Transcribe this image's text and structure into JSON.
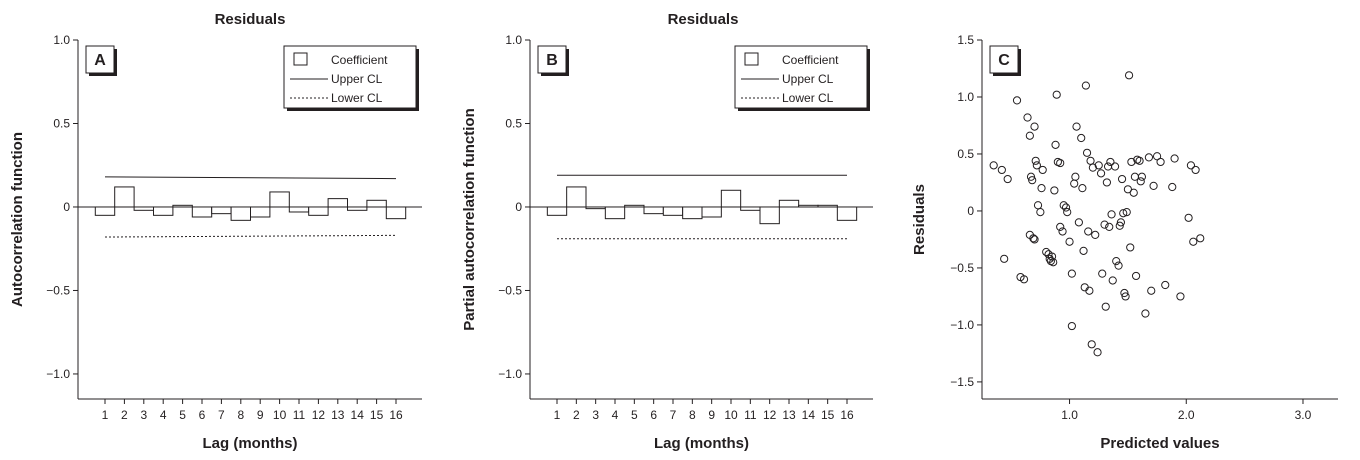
{
  "chart_data": [
    {
      "panel": "A",
      "type": "bar",
      "title": "Residuals",
      "xlabel": "Lag (months)",
      "ylabel": "Autocorrelation function",
      "categories": [
        "1",
        "2",
        "3",
        "4",
        "5",
        "6",
        "7",
        "8",
        "9",
        "10",
        "11",
        "12",
        "13",
        "14",
        "15",
        "16"
      ],
      "values": [
        -0.05,
        0.12,
        -0.02,
        -0.05,
        0.01,
        -0.06,
        -0.04,
        -0.08,
        -0.06,
        0.09,
        -0.03,
        -0.05,
        0.05,
        -0.02,
        0.04,
        -0.07
      ],
      "upper_cl": [
        0.18,
        0.17
      ],
      "lower_cl": [
        -0.18,
        -0.17
      ],
      "ylim": [
        -1.15,
        1.0
      ],
      "yticks": [
        {
          "value": 1.0,
          "label": "1.0"
        },
        {
          "value": 0.5,
          "label": "0.5"
        },
        {
          "value": 0,
          "label": "0"
        },
        {
          "value": -0.5,
          "label": "−0.5"
        },
        {
          "value": -1.0,
          "label": "−1.0"
        }
      ],
      "legend": {
        "position": "top-right",
        "items": [
          {
            "kind": "box",
            "label": "Coefficient"
          },
          {
            "kind": "solid",
            "label": "Upper CL"
          },
          {
            "kind": "dotted",
            "label": "Lower CL"
          }
        ]
      },
      "grid": false
    },
    {
      "panel": "B",
      "type": "bar",
      "title": "Residuals",
      "xlabel": "Lag (months)",
      "ylabel": "Partial autocorrelation function",
      "categories": [
        "1",
        "2",
        "3",
        "4",
        "5",
        "6",
        "7",
        "8",
        "9",
        "10",
        "11",
        "12",
        "13",
        "14",
        "15",
        "16"
      ],
      "values": [
        -0.05,
        0.12,
        -0.01,
        -0.07,
        0.01,
        -0.04,
        -0.05,
        -0.07,
        -0.06,
        0.1,
        -0.02,
        -0.1,
        0.04,
        0.01,
        0.01,
        -0.08
      ],
      "upper_cl": [
        0.19,
        0.19
      ],
      "lower_cl": [
        -0.19,
        -0.19
      ],
      "ylim": [
        -1.15,
        1.0
      ],
      "yticks": [
        {
          "value": 1.0,
          "label": "1.0"
        },
        {
          "value": 0.5,
          "label": "0.5"
        },
        {
          "value": 0,
          "label": "0"
        },
        {
          "value": -0.5,
          "label": "−0.5"
        },
        {
          "value": -1.0,
          "label": "−1.0"
        }
      ],
      "legend": {
        "position": "top-right",
        "items": [
          {
            "kind": "box",
            "label": "Coefficient"
          },
          {
            "kind": "solid",
            "label": "Upper CL"
          },
          {
            "kind": "dotted",
            "label": "Lower CL"
          }
        ]
      },
      "grid": false
    },
    {
      "panel": "C",
      "type": "scatter",
      "title": "",
      "xlabel": "Predicted values",
      "ylabel": "Residuals",
      "xlim": [
        0.25,
        3.3
      ],
      "ylim": [
        -1.65,
        1.5
      ],
      "xticks": [
        {
          "value": 1.0,
          "label": "1.0"
        },
        {
          "value": 2.0,
          "label": "2.0"
        },
        {
          "value": 3.0,
          "label": "3.0"
        }
      ],
      "yticks": [
        {
          "value": 1.5,
          "label": "1.5"
        },
        {
          "value": 1.0,
          "label": "1.0"
        },
        {
          "value": 0.5,
          "label": "0.5"
        },
        {
          "value": 0,
          "label": "0"
        },
        {
          "value": -0.5,
          "label": "−0.5"
        },
        {
          "value": -1.0,
          "label": "−1.0"
        },
        {
          "value": -1.5,
          "label": "−1.5"
        }
      ],
      "points": [
        [
          0.35,
          0.4
        ],
        [
          0.42,
          0.36
        ],
        [
          0.47,
          0.28
        ],
        [
          0.44,
          -0.42
        ],
        [
          0.55,
          0.97
        ],
        [
          0.58,
          -0.58
        ],
        [
          0.61,
          -0.6
        ],
        [
          0.64,
          0.82
        ],
        [
          0.66,
          0.66
        ],
        [
          0.67,
          0.3
        ],
        [
          0.68,
          0.27
        ],
        [
          0.7,
          0.74
        ],
        [
          0.71,
          0.44
        ],
        [
          0.72,
          0.4
        ],
        [
          0.73,
          0.05
        ],
        [
          0.75,
          -0.01
        ],
        [
          0.76,
          0.2
        ],
        [
          0.77,
          0.36
        ],
        [
          0.66,
          -0.21
        ],
        [
          0.69,
          -0.24
        ],
        [
          0.7,
          -0.25
        ],
        [
          0.8,
          -0.36
        ],
        [
          0.82,
          -0.38
        ],
        [
          0.83,
          -0.42
        ],
        [
          0.84,
          -0.44
        ],
        [
          0.85,
          -0.4
        ],
        [
          0.86,
          -0.45
        ],
        [
          0.87,
          0.18
        ],
        [
          0.88,
          0.58
        ],
        [
          0.89,
          1.02
        ],
        [
          0.9,
          0.43
        ],
        [
          0.92,
          0.42
        ],
        [
          0.92,
          -0.14
        ],
        [
          0.94,
          -0.18
        ],
        [
          0.95,
          0.05
        ],
        [
          0.97,
          0.03
        ],
        [
          0.98,
          -0.01
        ],
        [
          1.0,
          -0.27
        ],
        [
          1.02,
          -0.55
        ],
        [
          1.02,
          -1.01
        ],
        [
          1.04,
          0.24
        ],
        [
          1.05,
          0.3
        ],
        [
          1.06,
          0.74
        ],
        [
          1.08,
          -0.1
        ],
        [
          1.1,
          0.64
        ],
        [
          1.11,
          0.2
        ],
        [
          1.12,
          -0.35
        ],
        [
          1.13,
          -0.67
        ],
        [
          1.14,
          1.1
        ],
        [
          1.15,
          0.51
        ],
        [
          1.16,
          -0.18
        ],
        [
          1.17,
          -0.7
        ],
        [
          1.18,
          0.44
        ],
        [
          1.19,
          -1.17
        ],
        [
          1.2,
          0.38
        ],
        [
          1.22,
          -0.21
        ],
        [
          1.24,
          -1.24
        ],
        [
          1.25,
          0.4
        ],
        [
          1.27,
          0.33
        ],
        [
          1.28,
          -0.55
        ],
        [
          1.3,
          -0.12
        ],
        [
          1.31,
          -0.84
        ],
        [
          1.32,
          0.25
        ],
        [
          1.33,
          0.39
        ],
        [
          1.34,
          -0.14
        ],
        [
          1.35,
          0.43
        ],
        [
          1.36,
          -0.03
        ],
        [
          1.37,
          -0.61
        ],
        [
          1.39,
          0.39
        ],
        [
          1.4,
          -0.44
        ],
        [
          1.42,
          -0.48
        ],
        [
          1.43,
          -0.13
        ],
        [
          1.44,
          -0.1
        ],
        [
          1.45,
          0.28
        ],
        [
          1.46,
          -0.02
        ],
        [
          1.47,
          -0.72
        ],
        [
          1.48,
          -0.75
        ],
        [
          1.49,
          -0.01
        ],
        [
          1.5,
          0.19
        ],
        [
          1.51,
          1.19
        ],
        [
          1.52,
          -0.32
        ],
        [
          1.53,
          0.43
        ],
        [
          1.55,
          0.16
        ],
        [
          1.56,
          0.3
        ],
        [
          1.57,
          -0.57
        ],
        [
          1.58,
          0.45
        ],
        [
          1.6,
          0.44
        ],
        [
          1.61,
          0.26
        ],
        [
          1.62,
          0.3
        ],
        [
          1.65,
          -0.9
        ],
        [
          1.68,
          0.47
        ],
        [
          1.7,
          -0.7
        ],
        [
          1.72,
          0.22
        ],
        [
          1.75,
          0.48
        ],
        [
          1.78,
          0.43
        ],
        [
          1.82,
          -0.65
        ],
        [
          1.88,
          0.21
        ],
        [
          1.9,
          0.46
        ],
        [
          1.95,
          -0.75
        ],
        [
          2.02,
          -0.06
        ],
        [
          2.04,
          0.4
        ],
        [
          2.06,
          -0.27
        ],
        [
          2.08,
          0.36
        ],
        [
          2.12,
          -0.24
        ]
      ],
      "grid": false
    }
  ]
}
